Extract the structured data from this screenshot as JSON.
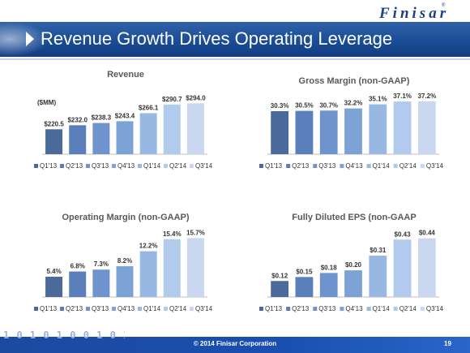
{
  "header": {
    "logo_text": "Finisar",
    "logo_mark": "®",
    "title": "Revenue Growth Drives Operating Leverage"
  },
  "footer": {
    "binary": "1 0 1 0 1 0 0 1 0 1 0 1 0",
    "copyright": "© 2014 Finisar Corporation",
    "page_number": "19"
  },
  "colors": [
    "#4a6a99",
    "#5b7fba",
    "#6f93cc",
    "#7da3d6",
    "#97b8e2",
    "#b2cbec",
    "#c9d8f0"
  ],
  "chart_data": [
    {
      "id": "revenue",
      "type": "bar",
      "title": "Revenue",
      "unit_label": "($MM)",
      "categories": [
        "Q1'13",
        "Q2'13",
        "Q3'13",
        "Q4'13",
        "Q1'14",
        "Q2'14",
        "Q3'14"
      ],
      "values": [
        220.5,
        232.0,
        238.3,
        243.4,
        266.1,
        290.7,
        294.0
      ],
      "labels": [
        "$220.5",
        "$232.0",
        "$238.3",
        "$243.4",
        "$266.1",
        "$290.7",
        "$294.0"
      ],
      "ylim": [
        150,
        320
      ],
      "legend_position": "bottom"
    },
    {
      "id": "gross-margin",
      "type": "bar",
      "title": "Gross Margin (non-GAAP)",
      "categories": [
        "Q1'13",
        "Q2'13",
        "Q3'13",
        "Q4'13",
        "Q1'14",
        "Q2'14",
        "Q3'14"
      ],
      "values": [
        30.3,
        30.5,
        30.7,
        32.2,
        35.1,
        37.1,
        37.2
      ],
      "labels": [
        "30.3%",
        "30.5%",
        "30.7%",
        "32.2%",
        "35.1%",
        "37.1%",
        "37.2%"
      ],
      "ylim": [
        0,
        40
      ],
      "legend_position": "bottom"
    },
    {
      "id": "operating-margin",
      "type": "bar",
      "title": "Operating Margin (non-GAAP)",
      "categories": [
        "Q1'13",
        "Q2'13",
        "Q3'13",
        "Q4'13",
        "Q1'14",
        "Q2'14",
        "Q3'14"
      ],
      "values": [
        5.4,
        6.8,
        7.3,
        8.2,
        12.2,
        15.4,
        15.7
      ],
      "labels": [
        "5.4%",
        "6.8%",
        "7.3%",
        "8.2%",
        "12.2%",
        "15.4%",
        "15.7%"
      ],
      "ylim": [
        0,
        16
      ],
      "legend_position": "bottom"
    },
    {
      "id": "eps",
      "type": "bar",
      "title": "Fully Diluted EPS  (non-GAAP",
      "categories": [
        "Q1'13",
        "Q2'13",
        "Q3'13",
        "Q4'13",
        "Q1'14",
        "Q2'14",
        "Q3'14"
      ],
      "values": [
        0.12,
        0.15,
        0.18,
        0.2,
        0.31,
        0.43,
        0.44
      ],
      "labels": [
        "$0.12",
        "$0.15",
        "$0.18",
        "$0.20",
        "$0.31",
        "$0.43",
        "$0.44"
      ],
      "ylim": [
        0,
        0.45
      ],
      "legend_position": "bottom"
    }
  ]
}
